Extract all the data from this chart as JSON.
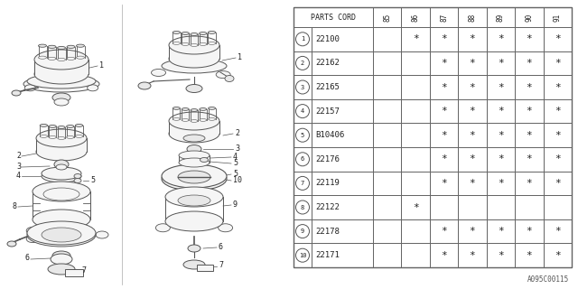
{
  "col_headers": [
    "85",
    "86",
    "87",
    "88",
    "89",
    "90",
    "91"
  ],
  "parts": [
    {
      "num": 1,
      "code": "22100",
      "marks": [
        false,
        true,
        true,
        true,
        true,
        true,
        true
      ]
    },
    {
      "num": 2,
      "code": "22162",
      "marks": [
        false,
        false,
        true,
        true,
        true,
        true,
        true
      ]
    },
    {
      "num": 3,
      "code": "22165",
      "marks": [
        false,
        false,
        true,
        true,
        true,
        true,
        true
      ]
    },
    {
      "num": 4,
      "code": "22157",
      "marks": [
        false,
        false,
        true,
        true,
        true,
        true,
        true
      ]
    },
    {
      "num": 5,
      "code": "B10406",
      "marks": [
        false,
        false,
        true,
        true,
        true,
        true,
        true
      ]
    },
    {
      "num": 6,
      "code": "22176",
      "marks": [
        false,
        false,
        true,
        true,
        true,
        true,
        true
      ]
    },
    {
      "num": 7,
      "code": "22119",
      "marks": [
        false,
        false,
        true,
        true,
        true,
        true,
        true
      ]
    },
    {
      "num": 8,
      "code": "22122",
      "marks": [
        false,
        true,
        false,
        false,
        false,
        false,
        false
      ]
    },
    {
      "num": 9,
      "code": "22178",
      "marks": [
        false,
        false,
        true,
        true,
        true,
        true,
        true
      ]
    },
    {
      "num": 10,
      "code": "22171",
      "marks": [
        false,
        false,
        true,
        true,
        true,
        true,
        true
      ]
    }
  ],
  "footer_text": "A095C00115",
  "lc": "#555555",
  "tc": "#222222"
}
